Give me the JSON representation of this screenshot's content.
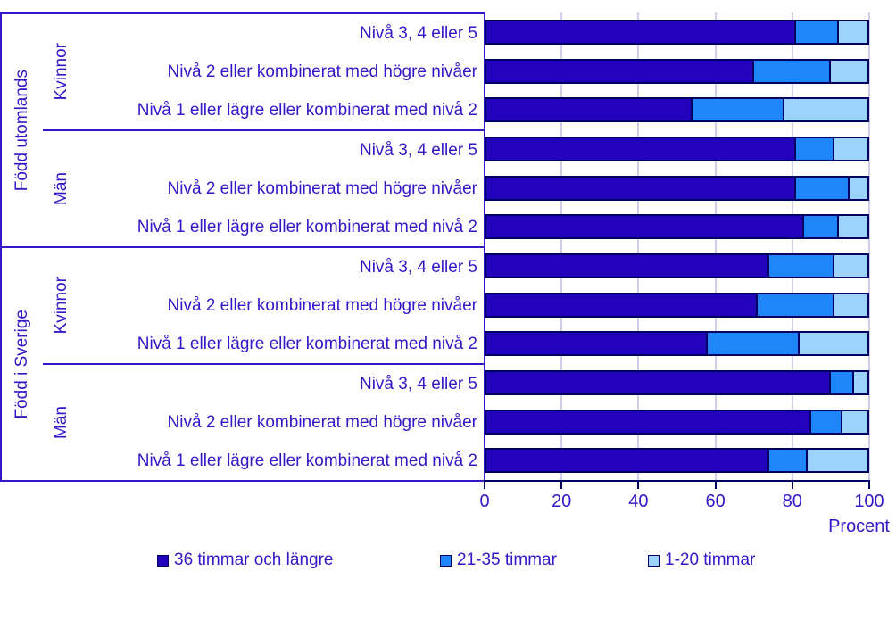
{
  "colors": {
    "text": "#3318C8",
    "bar36": "#2203BB",
    "bar2135": "#1E86F9",
    "bar120": "#9BD3FB",
    "border": "#000063",
    "grid": "#CFCFEC"
  },
  "chart_data": {
    "type": "bar",
    "orientation": "horizontal",
    "stacked": true,
    "unit": "percent",
    "xlabel": "Procent",
    "xlim": [
      0,
      100
    ],
    "x_ticks": [
      0,
      20,
      40,
      60,
      80,
      100
    ],
    "grid": true,
    "legend_position": "bottom",
    "series_names": [
      "36 timmar och längre",
      "21-35 timmar",
      "1-20 timmar"
    ],
    "legend": [
      {
        "label": "36 timmar och längre",
        "color": "#2203BB"
      },
      {
        "label": "21-35 timmar",
        "color": "#1E86F9"
      },
      {
        "label": "1-20 timmar",
        "color": "#9BD3FB"
      }
    ],
    "groups": [
      {
        "label": "Född utomlands",
        "subgroups": [
          {
            "label": "Kvinnor",
            "rows": [
              {
                "label": "Nivå 3, 4 eller 5",
                "values": [
                  81,
                  11,
                  8
                ]
              },
              {
                "label": "Nivå 2 eller kombinerat med högre nivåer",
                "values": [
                  70,
                  20,
                  10
                ]
              },
              {
                "label": "Nivå 1 eller lägre eller kombinerat med nivå 2",
                "values": [
                  54,
                  24,
                  22
                ]
              }
            ]
          },
          {
            "label": "Män",
            "rows": [
              {
                "label": "Nivå 3, 4 eller 5",
                "values": [
                  81,
                  10,
                  9
                ]
              },
              {
                "label": "Nivå 2 eller kombinerat med högre nivåer",
                "values": [
                  81,
                  14,
                  5
                ]
              },
              {
                "label": "Nivå 1 eller lägre eller kombinerat med nivå 2",
                "values": [
                  83,
                  9,
                  8
                ]
              }
            ]
          }
        ]
      },
      {
        "label": "Född i Sverige",
        "subgroups": [
          {
            "label": "Kvinnor",
            "rows": [
              {
                "label": "Nivå 3, 4 eller 5",
                "values": [
                  74,
                  17,
                  9
                ]
              },
              {
                "label": "Nivå 2 eller kombinerat med högre nivåer",
                "values": [
                  71,
                  20,
                  9
                ]
              },
              {
                "label": "Nivå 1 eller lägre eller kombinerat med nivå 2",
                "values": [
                  58,
                  24,
                  18
                ]
              }
            ]
          },
          {
            "label": "Män",
            "rows": [
              {
                "label": "Nivå 3, 4 eller 5",
                "values": [
                  90,
                  6,
                  4
                ]
              },
              {
                "label": "Nivå 2 eller kombinerat med högre nivåer",
                "values": [
                  85,
                  8,
                  7
                ]
              },
              {
                "label": "Nivå 1 eller lägre eller kombinerat med nivå 2",
                "values": [
                  74,
                  10,
                  16
                ]
              }
            ]
          }
        ]
      }
    ]
  }
}
